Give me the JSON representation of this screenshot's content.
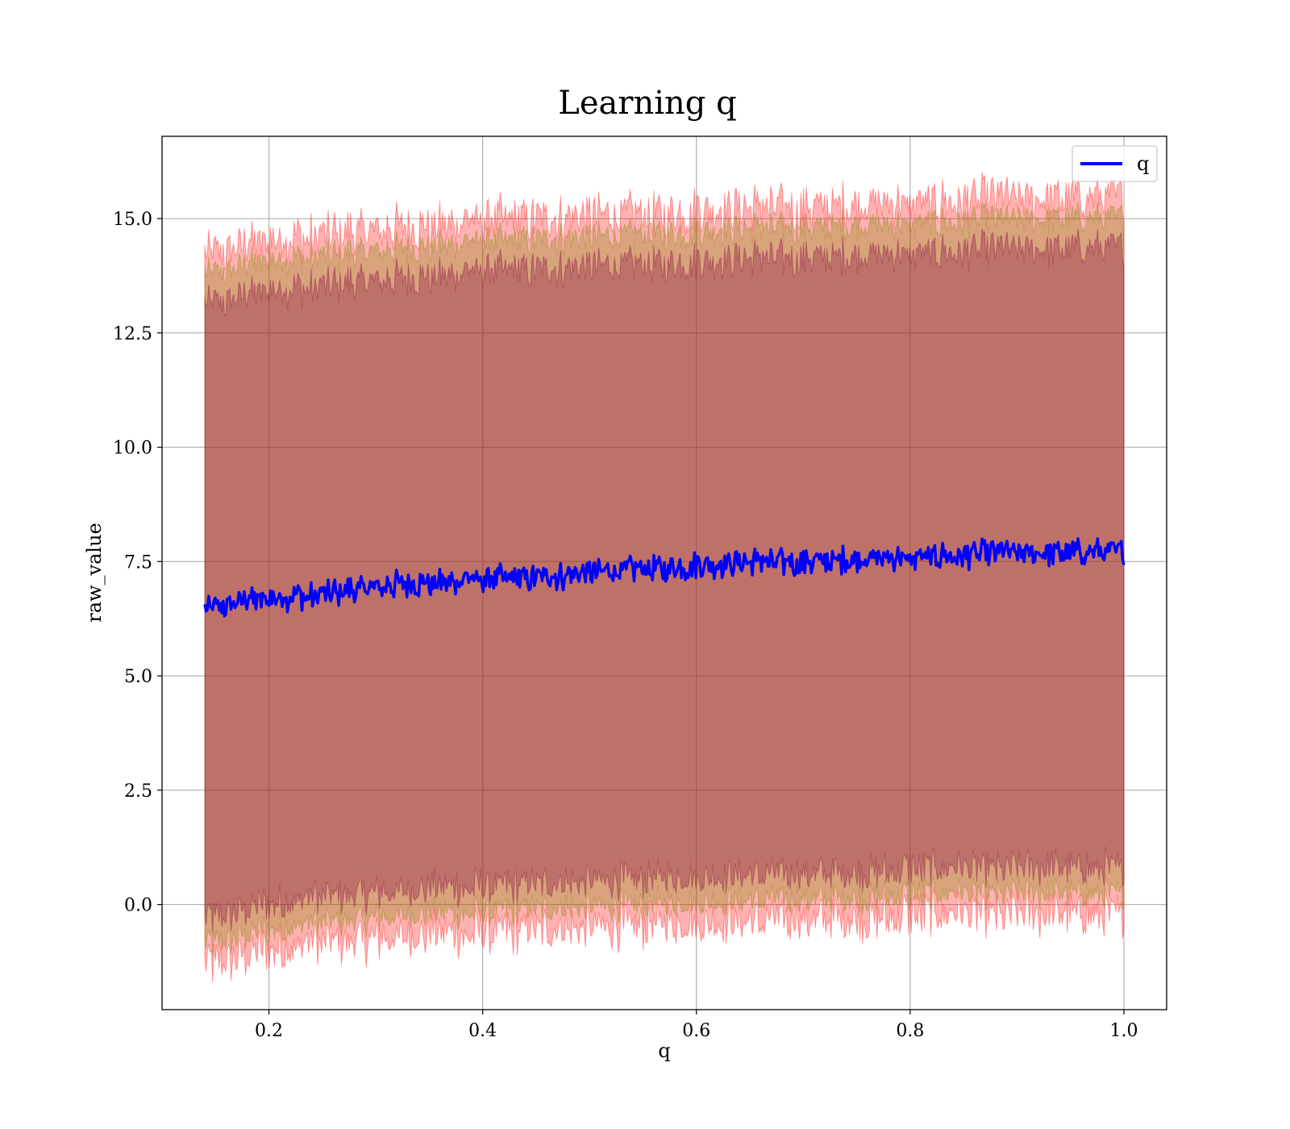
{
  "chart_data": {
    "type": "line",
    "title": "Learning q",
    "xlabel": "q",
    "ylabel": "raw_value",
    "xlim": [
      0.1,
      1.04
    ],
    "ylim": [
      -2.3,
      16.8
    ],
    "xticks": [
      "0.2",
      "0.4",
      "0.6",
      "0.8",
      "1.0"
    ],
    "yticks": [
      "0.0",
      "2.5",
      "5.0",
      "7.5",
      "10.0",
      "12.5",
      "15.0"
    ],
    "grid": true,
    "legend": {
      "position": "top-right",
      "entries": [
        "q"
      ]
    },
    "colors": {
      "line": "#0000ff",
      "band_red": "#ff0000",
      "band_purple": "#800040",
      "band_olive": "#808000",
      "grid": "#b0b0b0"
    },
    "x": [
      0.14,
      0.16,
      0.18,
      0.2,
      0.25,
      0.3,
      0.35,
      0.4,
      0.45,
      0.5,
      0.55,
      0.6,
      0.65,
      0.7,
      0.75,
      0.8,
      0.85,
      0.9,
      0.95,
      1.0
    ],
    "series": [
      {
        "name": "q",
        "values": [
          6.5,
          6.55,
          6.7,
          6.7,
          6.8,
          6.95,
          7.05,
          7.1,
          7.15,
          7.25,
          7.35,
          7.4,
          7.5,
          7.5,
          7.55,
          7.6,
          7.65,
          7.7,
          7.7,
          7.7
        ]
      }
    ],
    "bands": [
      {
        "color": "red",
        "lower": [
          -1.3,
          -1.3,
          -1.1,
          -1.0,
          -0.85,
          -0.75,
          -0.65,
          -0.6,
          -0.55,
          -0.5,
          -0.45,
          -0.4,
          -0.35,
          -0.35,
          -0.3,
          -0.25,
          -0.2,
          -0.2,
          -0.2,
          -0.2
        ],
        "upper": [
          14.3,
          14.3,
          14.5,
          14.55,
          14.65,
          14.75,
          14.85,
          14.95,
          15.0,
          15.05,
          15.1,
          15.15,
          15.25,
          15.25,
          15.3,
          15.35,
          15.4,
          15.45,
          15.45,
          15.45
        ]
      },
      {
        "color": "olive",
        "lower": [
          -0.85,
          -0.85,
          -0.65,
          -0.55,
          -0.4,
          -0.3,
          -0.2,
          -0.15,
          -0.1,
          -0.05,
          0.0,
          0.05,
          0.1,
          0.1,
          0.15,
          0.2,
          0.25,
          0.25,
          0.25,
          0.25
        ],
        "upper": [
          13.85,
          13.85,
          14.05,
          14.1,
          14.2,
          14.3,
          14.4,
          14.5,
          14.55,
          14.6,
          14.65,
          14.7,
          14.8,
          14.8,
          14.85,
          14.9,
          14.95,
          15.0,
          15.0,
          15.0
        ]
      },
      {
        "color": "purple",
        "lower": [
          -0.3,
          -0.3,
          -0.1,
          0.0,
          0.15,
          0.25,
          0.35,
          0.4,
          0.45,
          0.5,
          0.55,
          0.6,
          0.65,
          0.65,
          0.7,
          0.75,
          0.8,
          0.8,
          0.8,
          0.8
        ],
        "upper": [
          13.2,
          13.2,
          13.4,
          13.45,
          13.55,
          13.65,
          13.75,
          13.85,
          13.9,
          13.95,
          14.0,
          14.05,
          14.15,
          14.15,
          14.2,
          14.25,
          14.3,
          14.35,
          14.35,
          14.35
        ]
      }
    ]
  }
}
